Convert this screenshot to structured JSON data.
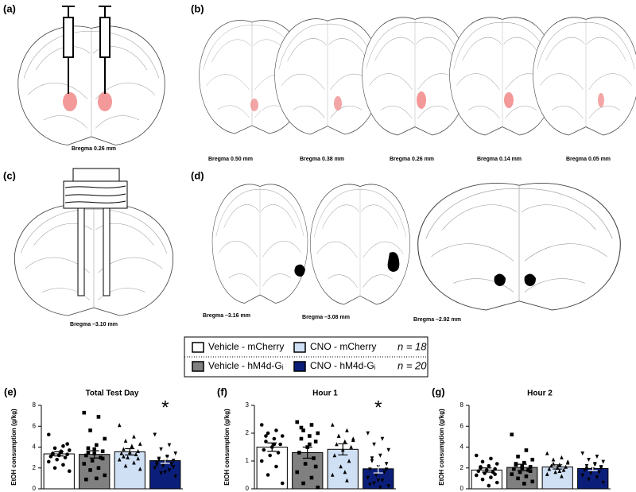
{
  "panels": [
    {
      "label": "(a)",
      "bregma": [
        "Bregma 0.26 mm"
      ]
    },
    {
      "label": "(b)",
      "bregma": [
        "Bregma 0.50 mm",
        "Bregma 0.38 mm",
        "Bregma 0.26 mm",
        "Bregma 0.14 mm",
        "Bregma 0.05 mm"
      ]
    },
    {
      "label": "(c)",
      "bregma": [
        "Bregma –3.10 mm"
      ]
    },
    {
      "label": "(d)",
      "bregma": [
        "Bregma –3.16 mm",
        "Bregma –3.08 mm",
        "Bregma –2.92 mm"
      ]
    }
  ],
  "legend": {
    "entries": [
      {
        "name": "Vehicle - mCherry",
        "color": "#ffffff",
        "marker": "circle"
      },
      {
        "name": "Vehicle - hM4d-Gᵢ",
        "color": "#808080",
        "marker": "square"
      },
      {
        "name": "CNO - mCherry",
        "color": "#cfe0f5",
        "marker": "triangle-up"
      },
      {
        "name": "CNO - hM4d-Gᵢ",
        "color": "#0b1f7a",
        "marker": "triangle-down"
      }
    ],
    "n": [
      "n = 18",
      "n = 20"
    ]
  },
  "chart_data": [
    {
      "type": "bar",
      "label": "(e)",
      "title": "Total Test Day",
      "ylabel": "EtOH consumption (g/kg)",
      "ylim": [
        0,
        8
      ],
      "yticks": [
        0,
        2,
        4,
        6,
        8
      ],
      "values": [
        3.35,
        3.3,
        3.55,
        2.7
      ],
      "errors": [
        0.2,
        0.35,
        0.3,
        0.25
      ],
      "annotations": [
        null,
        null,
        null,
        "*"
      ],
      "points": [
        [
          5.2,
          4.1,
          3.9,
          3.7,
          3.5,
          3.4,
          3.3,
          3.2,
          3.1,
          3.0,
          2.8,
          2.6,
          2.3,
          2.0,
          1.7,
          3.6,
          3.3,
          4.3
        ],
        [
          7.3,
          6.9,
          5.6,
          4.8,
          4.2,
          3.9,
          3.6,
          3.4,
          3.2,
          3.0,
          2.7,
          2.4,
          2.0,
          1.8,
          1.3,
          1.0,
          3.5,
          2.9,
          3.8,
          0.9
        ],
        [
          6.1,
          5.0,
          4.6,
          4.3,
          4.0,
          3.8,
          3.6,
          3.5,
          3.4,
          3.3,
          3.0,
          2.8,
          2.5,
          2.2,
          1.9,
          4.1,
          3.1,
          2.9
        ],
        [
          5.2,
          4.2,
          3.8,
          3.4,
          3.1,
          2.9,
          2.7,
          2.6,
          2.5,
          2.4,
          2.2,
          2.0,
          1.8,
          1.5,
          1.2,
          3.0,
          2.8,
          2.1,
          1.6,
          2.3
        ]
      ]
    },
    {
      "type": "bar",
      "label": "(f)",
      "title": "Hour 1",
      "ylabel": "EtOH consumption (g/kg)",
      "ylim": [
        0,
        3
      ],
      "yticks": [
        0,
        1,
        2,
        3
      ],
      "values": [
        1.5,
        1.3,
        1.42,
        0.72
      ],
      "errors": [
        0.15,
        0.2,
        0.2,
        0.15
      ],
      "annotations": [
        null,
        null,
        null,
        "*"
      ],
      "points": [
        [
          2.3,
          2.1,
          2.0,
          1.9,
          1.8,
          1.7,
          1.6,
          1.5,
          1.4,
          1.3,
          1.2,
          1.0,
          0.8,
          0.5,
          0.2,
          1.6,
          1.9
        ],
        [
          2.4,
          2.3,
          2.1,
          2.0,
          1.9,
          1.8,
          1.7,
          1.5,
          1.3,
          1.1,
          0.9,
          0.6,
          0.4,
          0.2,
          0.05,
          1.6,
          2.2,
          0.8
        ],
        [
          2.3,
          2.1,
          1.9,
          1.8,
          1.7,
          1.6,
          1.5,
          1.4,
          1.2,
          1.0,
          0.8,
          0.5,
          0.3,
          1.9,
          1.75,
          0.6
        ],
        [
          2.0,
          1.8,
          1.6,
          1.4,
          1.2,
          1.0,
          0.9,
          0.8,
          0.7,
          0.6,
          0.5,
          0.4,
          0.3,
          0.2,
          0.1,
          0.05,
          1.1,
          0.7,
          0.3,
          0.15
        ]
      ]
    },
    {
      "type": "bar",
      "label": "(g)",
      "title": "Hour 2",
      "ylabel": "EtOH consumption (g/kg)",
      "ylim": [
        0,
        8
      ],
      "yticks": [
        0,
        2,
        4,
        6,
        8
      ],
      "values": [
        1.8,
        2.05,
        2.1,
        1.95
      ],
      "errors": [
        0.2,
        0.3,
        0.2,
        0.2
      ],
      "points": [
        [
          3.2,
          2.9,
          2.6,
          2.4,
          2.2,
          2.0,
          1.9,
          1.8,
          1.7,
          1.6,
          1.5,
          1.3,
          1.1,
          0.9,
          0.6,
          0.3,
          2.1,
          1.4
        ],
        [
          5.2,
          3.7,
          3.1,
          2.8,
          2.5,
          2.3,
          2.1,
          2.0,
          1.9,
          1.8,
          1.6,
          1.4,
          1.2,
          1.0,
          0.7,
          0.5,
          2.4,
          1.7,
          2.2
        ],
        [
          3.4,
          3.0,
          2.8,
          2.5,
          2.3,
          2.2,
          2.1,
          2.0,
          1.9,
          1.8,
          1.6,
          1.4,
          1.2,
          2.4,
          2.6,
          1.7
        ],
        [
          3.4,
          3.1,
          2.8,
          2.6,
          2.4,
          2.2,
          2.0,
          1.9,
          1.8,
          1.6,
          1.5,
          1.3,
          1.1,
          0.9,
          0.6,
          2.3,
          1.95,
          2.1
        ]
      ]
    }
  ]
}
